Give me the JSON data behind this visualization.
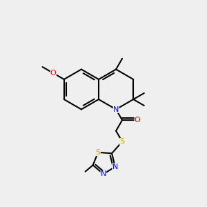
{
  "bg_color": "#efefef",
  "bond_color": "#000000",
  "bond_width": 1.5,
  "atom_colors": {
    "N": "#0000ff",
    "O": "#ff0000",
    "S": "#ccaa00",
    "C": "#000000"
  },
  "font_size": 7.5
}
